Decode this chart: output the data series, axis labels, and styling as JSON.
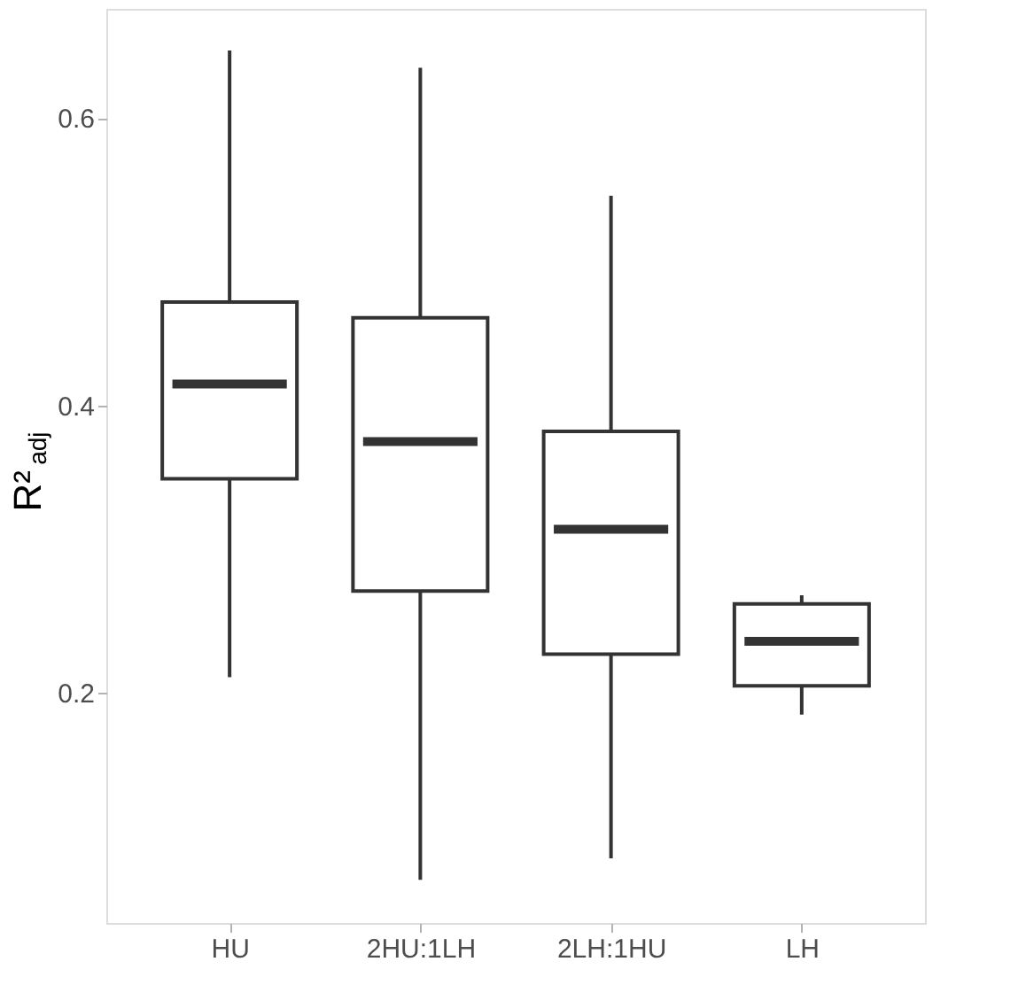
{
  "chart_data": {
    "type": "box",
    "ylabel": "R²$_{adj}$",
    "categories": [
      "HU",
      "2HU:1LH",
      "2LH:1HU",
      "LH"
    ],
    "boxes": [
      {
        "low": 0.211,
        "q1": 0.349,
        "median": 0.415,
        "q3": 0.472,
        "high": 0.647
      },
      {
        "low": 0.07,
        "q1": 0.271,
        "median": 0.375,
        "q3": 0.461,
        "high": 0.635
      },
      {
        "low": 0.085,
        "q1": 0.227,
        "median": 0.314,
        "q3": 0.382,
        "high": 0.546
      },
      {
        "low": 0.185,
        "q1": 0.205,
        "median": 0.236,
        "q3": 0.262,
        "high": 0.268
      }
    ],
    "ylim": [
      0.04,
      0.676
    ],
    "yticks": [
      0.2,
      0.4,
      0.6
    ],
    "grid": false,
    "color": "#333333"
  }
}
